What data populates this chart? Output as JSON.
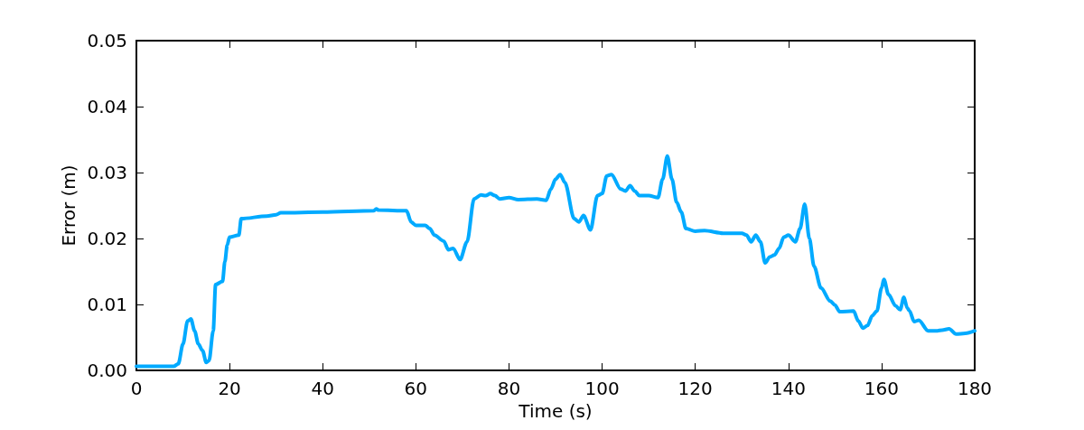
{
  "chart_data": {
    "type": "line",
    "xlabel": "Time (s)",
    "ylabel": "Error (m)",
    "xlim": [
      0,
      180
    ],
    "xticks": [
      0,
      20,
      40,
      60,
      80,
      100,
      120,
      140,
      160,
      180
    ],
    "ylim": [
      0,
      0.05
    ],
    "yticks": [
      {
        "value": 0,
        "label": "0.00"
      },
      {
        "value": 0.01,
        "label": "0.01"
      },
      {
        "value": 0.02,
        "label": "0.02"
      },
      {
        "value": 0.03,
        "label": "0.03"
      },
      {
        "value": 0.04,
        "label": "0.04"
      },
      {
        "value": 0.05,
        "label": "0.05"
      }
    ],
    "grid": false,
    "marker": "none",
    "line_style": "solid",
    "series": [
      {
        "color": "#00aaff",
        "x": [
          0,
          8,
          9,
          10,
          11,
          11.7,
          12.5,
          13.3,
          14.2,
          15,
          15.6,
          16.5,
          17,
          18.5,
          19,
          19.5,
          20,
          22,
          22.5,
          28,
          30,
          31,
          40,
          51,
          51.5,
          52,
          58,
          59,
          60,
          62,
          63,
          64,
          66,
          67,
          68,
          69.5,
          71,
          72.5,
          74,
          75,
          76,
          77,
          78,
          80,
          82,
          86,
          88,
          89,
          90,
          91,
          92,
          94,
          95,
          96,
          97.5,
          99,
          100,
          101,
          102,
          104,
          105,
          106,
          107,
          108,
          110,
          112,
          113,
          114,
          115,
          116,
          117,
          118,
          120,
          122,
          126,
          130,
          131,
          132,
          133,
          134,
          135,
          136,
          137,
          138,
          139,
          140,
          141.5,
          142.5,
          143.5,
          144.5,
          145.5,
          147,
          149,
          150,
          151,
          154,
          155,
          156,
          157,
          158,
          159,
          160,
          160.5,
          161.5,
          163,
          164,
          164.8,
          165.5,
          166,
          167,
          168,
          170,
          172,
          173,
          174.5,
          176,
          178,
          180
        ],
        "values": [
          0.0006,
          0.0006,
          0.001,
          0.004,
          0.0075,
          0.0078,
          0.006,
          0.004,
          0.003,
          0.0012,
          0.0015,
          0.006,
          0.013,
          0.0135,
          0.0165,
          0.019,
          0.0202,
          0.0205,
          0.023,
          0.0234,
          0.0236,
          0.0239,
          0.024,
          0.0242,
          0.0245,
          0.0243,
          0.0242,
          0.0225,
          0.022,
          0.022,
          0.0215,
          0.0205,
          0.0196,
          0.0183,
          0.0185,
          0.0168,
          0.0195,
          0.026,
          0.0266,
          0.0265,
          0.0268,
          0.0265,
          0.026,
          0.0262,
          0.0259,
          0.026,
          0.0258,
          0.0275,
          0.029,
          0.0297,
          0.0285,
          0.023,
          0.0225,
          0.0235,
          0.0213,
          0.0265,
          0.0268,
          0.0295,
          0.0297,
          0.0275,
          0.0272,
          0.028,
          0.0272,
          0.0265,
          0.0265,
          0.0262,
          0.029,
          0.0325,
          0.029,
          0.0255,
          0.024,
          0.0215,
          0.0211,
          0.0212,
          0.0208,
          0.0208,
          0.0205,
          0.0195,
          0.0205,
          0.0195,
          0.0163,
          0.0172,
          0.0175,
          0.0185,
          0.0202,
          0.0205,
          0.0195,
          0.0215,
          0.0252,
          0.02,
          0.0158,
          0.0125,
          0.0105,
          0.0099,
          0.0089,
          0.009,
          0.0075,
          0.0064,
          0.0068,
          0.0083,
          0.009,
          0.0125,
          0.0138,
          0.0115,
          0.0098,
          0.0092,
          0.0111,
          0.0095,
          0.009,
          0.0074,
          0.0076,
          0.006,
          0.006,
          0.0061,
          0.0063,
          0.0055,
          0.0056,
          0.006
        ]
      }
    ]
  }
}
